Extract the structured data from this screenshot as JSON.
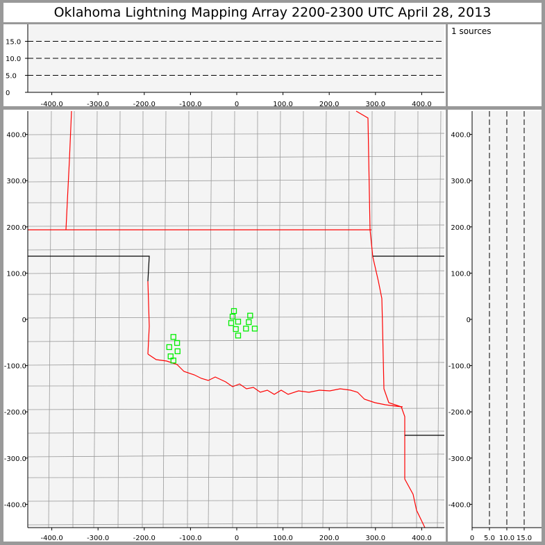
{
  "title": "Oklahoma Lightning Mapping Array   2200-2300 UTC  April 28, 2013",
  "legend": {
    "sources_label": "1 sources"
  },
  "colors": {
    "source_marker": "#00ee00",
    "oklahoma_border": "#ff0000",
    "county_lines": "#888888",
    "state_lines": "#000000",
    "plot_background": "#f4f4f4"
  },
  "chart_data": [
    {
      "type": "scatter",
      "panel": "plan-view",
      "xlim": [
        -440,
        440
      ],
      "ylim": [
        -440,
        440
      ],
      "xticks": [
        "-400.0",
        "-300.0",
        "-200.0",
        "-100.0",
        "0",
        "100.0",
        "200.0",
        "300.0",
        "400.0"
      ],
      "yticks": [
        "-400.0",
        "-300.0",
        "-200.0",
        "-100.0",
        "0",
        "100.0",
        "200.0",
        "300.0",
        "400.0"
      ],
      "points": [
        [
          -6,
          18
        ],
        [
          -9,
          6
        ],
        [
          29,
          8
        ],
        [
          -12,
          -8
        ],
        [
          3,
          -5
        ],
        [
          26,
          -6
        ],
        [
          -2,
          -21
        ],
        [
          20,
          -20
        ],
        [
          39,
          -20
        ],
        [
          3,
          -35
        ],
        [
          -137,
          -38
        ],
        [
          -129,
          -51
        ],
        [
          -146,
          -60
        ],
        [
          -128,
          -69
        ],
        [
          -143,
          -80
        ],
        [
          -137,
          -89
        ]
      ]
    },
    {
      "type": "scatter",
      "panel": "altitude-vs-x",
      "xlim": [
        -440,
        440
      ],
      "ylim": [
        0,
        20
      ],
      "xticks": [
        "-400.0",
        "-300.0",
        "-200.0",
        "-100.0",
        "0",
        "100.0",
        "200.0",
        "300.0",
        "400.0"
      ],
      "yticks": [
        "0",
        "5.0",
        "10.0",
        "15.0"
      ],
      "grid": "dashed at 5, 10, 15",
      "points": []
    },
    {
      "type": "scatter",
      "panel": "altitude-vs-y",
      "xlim": [
        0,
        20
      ],
      "ylim": [
        -440,
        440
      ],
      "xticks": [
        "0",
        "5.0",
        "10.0",
        "15.0"
      ],
      "yticks": [
        "-400.0",
        "-300.0",
        "-200.0",
        "-100.0",
        "0",
        "100.0",
        "200.0",
        "300.0",
        "400.0"
      ],
      "grid": "dashed at 5, 10, 15",
      "points": []
    }
  ]
}
